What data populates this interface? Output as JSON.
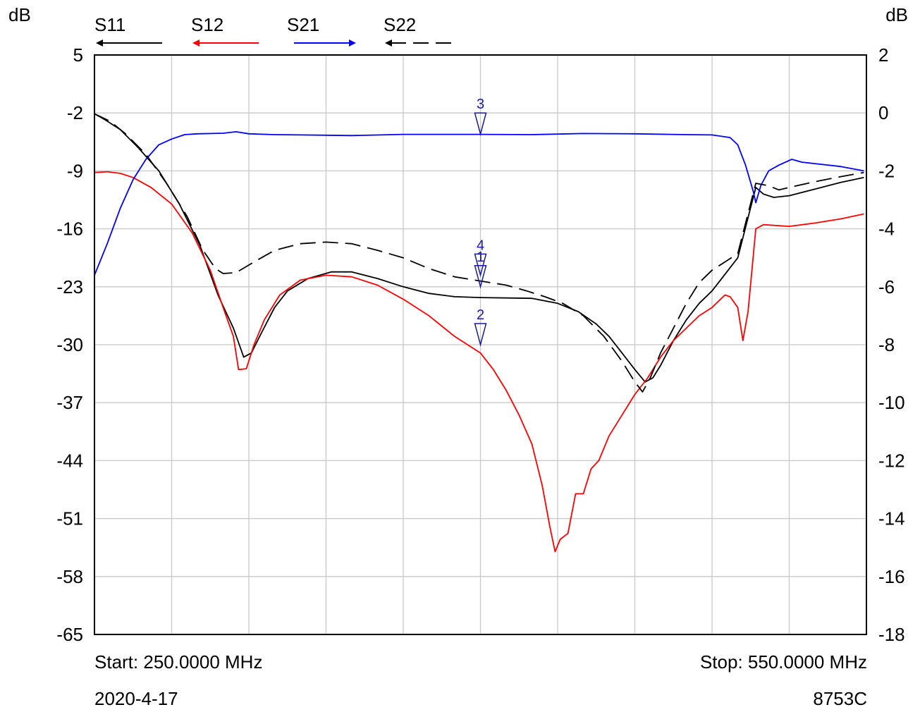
{
  "chart_data": {
    "type": "line",
    "left_unit": "dB",
    "right_unit": "dB",
    "x": {
      "min": 250,
      "max": 550
    },
    "y_left": {
      "min": -65,
      "max": 5,
      "ticks": [
        5,
        -2,
        -9,
        -16,
        -23,
        -30,
        -37,
        -44,
        -51,
        -58,
        -65
      ]
    },
    "y_right": {
      "min": -18,
      "max": 2,
      "ticks": [
        2,
        0,
        -2,
        -4,
        -6,
        -8,
        -10,
        -12,
        -14,
        -16,
        -18
      ]
    },
    "grid": true,
    "legend_position": "top",
    "series": [
      {
        "name": "S11",
        "color": "#000000",
        "dash": false,
        "axis": "left",
        "arrow": "left",
        "points": [
          [
            250,
            -2.1
          ],
          [
            254,
            -2.8
          ],
          [
            260,
            -4.0
          ],
          [
            267,
            -6.2
          ],
          [
            275,
            -9.0
          ],
          [
            283,
            -13.0
          ],
          [
            291,
            -18.0
          ],
          [
            298,
            -24.0
          ],
          [
            304,
            -28.0
          ],
          [
            308,
            -31.5
          ],
          [
            311,
            -31.0
          ],
          [
            315,
            -28.5
          ],
          [
            320,
            -25.5
          ],
          [
            325,
            -23.5
          ],
          [
            333,
            -22.0
          ],
          [
            342,
            -21.2
          ],
          [
            350,
            -21.2
          ],
          [
            360,
            -22.0
          ],
          [
            370,
            -23.0
          ],
          [
            380,
            -23.8
          ],
          [
            390,
            -24.2
          ],
          [
            400,
            -24.3
          ],
          [
            420,
            -24.4
          ],
          [
            430,
            -25.0
          ],
          [
            438,
            -26.0
          ],
          [
            445,
            -27.5
          ],
          [
            450,
            -29.0
          ],
          [
            455,
            -31.0
          ],
          [
            460,
            -33.0
          ],
          [
            464,
            -34.5
          ],
          [
            467,
            -34.0
          ],
          [
            470,
            -32.5
          ],
          [
            475,
            -29.5
          ],
          [
            480,
            -27.0
          ],
          [
            485,
            -25.0
          ],
          [
            490,
            -23.5
          ],
          [
            495,
            -21.5
          ],
          [
            500,
            -19.5
          ],
          [
            507,
            -11.0
          ],
          [
            510,
            -11.8
          ],
          [
            514,
            -12.2
          ],
          [
            520,
            -12.0
          ],
          [
            530,
            -11.2
          ],
          [
            540,
            -10.4
          ],
          [
            549,
            -9.8
          ]
        ]
      },
      {
        "name": "S12",
        "color": "#ff0000",
        "dash": false,
        "axis": "left",
        "arrow": "left",
        "points": [
          [
            250,
            -9.2
          ],
          [
            255,
            -9.1
          ],
          [
            260,
            -9.3
          ],
          [
            265,
            -9.8
          ],
          [
            272,
            -11.0
          ],
          [
            280,
            -13.0
          ],
          [
            288,
            -16.5
          ],
          [
            295,
            -21.0
          ],
          [
            300,
            -25.5
          ],
          [
            304,
            -29.0
          ],
          [
            306,
            -33.0
          ],
          [
            309,
            -32.9
          ],
          [
            312,
            -30.0
          ],
          [
            316,
            -27.0
          ],
          [
            322,
            -24.0
          ],
          [
            330,
            -22.2
          ],
          [
            340,
            -21.6
          ],
          [
            350,
            -21.8
          ],
          [
            360,
            -22.8
          ],
          [
            370,
            -24.5
          ],
          [
            380,
            -26.5
          ],
          [
            390,
            -29.0
          ],
          [
            400,
            -31.0
          ],
          [
            405,
            -33.0
          ],
          [
            410,
            -35.5
          ],
          [
            415,
            -38.5
          ],
          [
            420,
            -42.0
          ],
          [
            424,
            -47.0
          ],
          [
            427,
            -52.0
          ],
          [
            429,
            -55.0
          ],
          [
            431,
            -53.5
          ],
          [
            434,
            -52.8
          ],
          [
            437,
            -48.0
          ],
          [
            440,
            -48.0
          ],
          [
            443,
            -45.0
          ],
          [
            446,
            -44.0
          ],
          [
            450,
            -41.0
          ],
          [
            455,
            -38.5
          ],
          [
            460,
            -36.0
          ],
          [
            465,
            -34.0
          ],
          [
            470,
            -31.5
          ],
          [
            475,
            -29.5
          ],
          [
            480,
            -28.0
          ],
          [
            485,
            -26.5
          ],
          [
            490,
            -25.5
          ],
          [
            495,
            -24.0
          ],
          [
            497,
            -24.2
          ],
          [
            500,
            -25.5
          ],
          [
            502,
            -29.5
          ],
          [
            504,
            -26.0
          ],
          [
            507,
            -16.0
          ],
          [
            510,
            -15.5
          ],
          [
            520,
            -15.7
          ],
          [
            530,
            -15.3
          ],
          [
            540,
            -14.8
          ],
          [
            549,
            -14.2
          ]
        ]
      },
      {
        "name": "S21",
        "color": "#0000ff",
        "dash": false,
        "axis": "right",
        "arrow": "right",
        "points": [
          [
            250,
            -5.6
          ],
          [
            255,
            -4.5
          ],
          [
            260,
            -3.3
          ],
          [
            265,
            -2.3
          ],
          [
            270,
            -1.6
          ],
          [
            275,
            -1.1
          ],
          [
            280,
            -0.9
          ],
          [
            285,
            -0.75
          ],
          [
            290,
            -0.72
          ],
          [
            300,
            -0.7
          ],
          [
            305,
            -0.65
          ],
          [
            310,
            -0.72
          ],
          [
            320,
            -0.75
          ],
          [
            330,
            -0.76
          ],
          [
            340,
            -0.77
          ],
          [
            350,
            -0.78
          ],
          [
            370,
            -0.74
          ],
          [
            400,
            -0.74
          ],
          [
            420,
            -0.75
          ],
          [
            440,
            -0.71
          ],
          [
            460,
            -0.72
          ],
          [
            480,
            -0.75
          ],
          [
            490,
            -0.76
          ],
          [
            497,
            -0.85
          ],
          [
            500,
            -1.1
          ],
          [
            503,
            -1.8
          ],
          [
            506,
            -2.7
          ],
          [
            507,
            -3.1
          ],
          [
            509,
            -2.5
          ],
          [
            512,
            -2.0
          ],
          [
            516,
            -1.8
          ],
          [
            521,
            -1.6
          ],
          [
            525,
            -1.7
          ],
          [
            530,
            -1.75
          ],
          [
            540,
            -1.85
          ],
          [
            549,
            -2.0
          ]
        ]
      },
      {
        "name": "S22",
        "color": "#000000",
        "dash": true,
        "axis": "left",
        "arrow": "left",
        "points": [
          [
            250,
            -2.1
          ],
          [
            256,
            -3.0
          ],
          [
            262,
            -4.5
          ],
          [
            270,
            -7.0
          ],
          [
            278,
            -10.5
          ],
          [
            286,
            -14.5
          ],
          [
            292,
            -18.5
          ],
          [
            297,
            -20.8
          ],
          [
            300,
            -21.4
          ],
          [
            305,
            -21.3
          ],
          [
            312,
            -20.0
          ],
          [
            320,
            -18.6
          ],
          [
            330,
            -17.8
          ],
          [
            340,
            -17.6
          ],
          [
            350,
            -17.8
          ],
          [
            360,
            -18.6
          ],
          [
            370,
            -19.5
          ],
          [
            380,
            -20.8
          ],
          [
            390,
            -21.8
          ],
          [
            400,
            -22.3
          ],
          [
            410,
            -22.8
          ],
          [
            418,
            -23.5
          ],
          [
            425,
            -24.2
          ],
          [
            432,
            -25.0
          ],
          [
            440,
            -26.5
          ],
          [
            448,
            -29.0
          ],
          [
            455,
            -32.0
          ],
          [
            460,
            -34.5
          ],
          [
            463,
            -35.7
          ],
          [
            466,
            -34.0
          ],
          [
            470,
            -31.0
          ],
          [
            475,
            -28.0
          ],
          [
            480,
            -25.0
          ],
          [
            485,
            -22.5
          ],
          [
            490,
            -21.0
          ],
          [
            495,
            -20.0
          ],
          [
            500,
            -19.0
          ],
          [
            507,
            -10.5
          ],
          [
            512,
            -10.8
          ],
          [
            516,
            -11.3
          ],
          [
            520,
            -11.0
          ],
          [
            530,
            -10.3
          ],
          [
            540,
            -9.7
          ],
          [
            549,
            -9.2
          ]
        ]
      }
    ],
    "markers": [
      {
        "label": "3",
        "x": 400,
        "axis": "right",
        "value": -0.73
      },
      {
        "label": "4",
        "x": 400,
        "axis": "left",
        "value": -21.6
      },
      {
        "label": "1",
        "x": 400,
        "axis": "left",
        "value": -23.0
      },
      {
        "label": "2",
        "x": 400,
        "axis": "left",
        "value": -30.0
      }
    ]
  },
  "footer": {
    "start": "Start: 250.0000 MHz",
    "stop": "Stop: 550.0000 MHz",
    "date": "2020-4-17",
    "model": "8753C"
  }
}
